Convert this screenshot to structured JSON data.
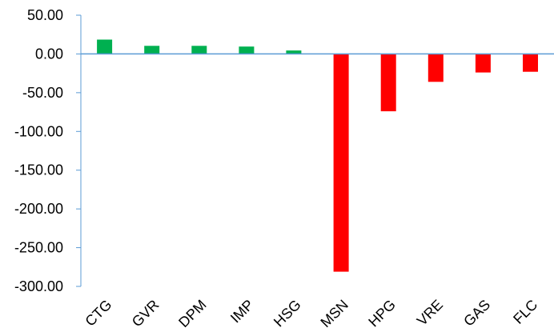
{
  "chart_data": {
    "type": "bar",
    "categories": [
      "CTG",
      "GVR",
      "DPM",
      "IMP",
      "HSG",
      "MSN",
      "HPG",
      "VRE",
      "GAS",
      "FLC"
    ],
    "values": [
      18.5,
      10.5,
      10.5,
      9.5,
      4.5,
      -281,
      -74,
      -36,
      -24,
      -23
    ],
    "y_tick_labels": [
      "50.00",
      "0.00",
      "-50.00",
      "-100.00",
      "-150.00",
      "-200.00",
      "-250.00",
      "-300.00"
    ],
    "ylim": [
      -300,
      50
    ],
    "yticks": [
      50,
      0,
      -50,
      -100,
      -150,
      -200,
      -250,
      -300
    ],
    "title": "",
    "xlabel": "",
    "ylabel": "",
    "grid": false,
    "colors": {
      "positive": "#00b050",
      "negative": "#ff0000",
      "axis": "#5b9bd5"
    }
  }
}
